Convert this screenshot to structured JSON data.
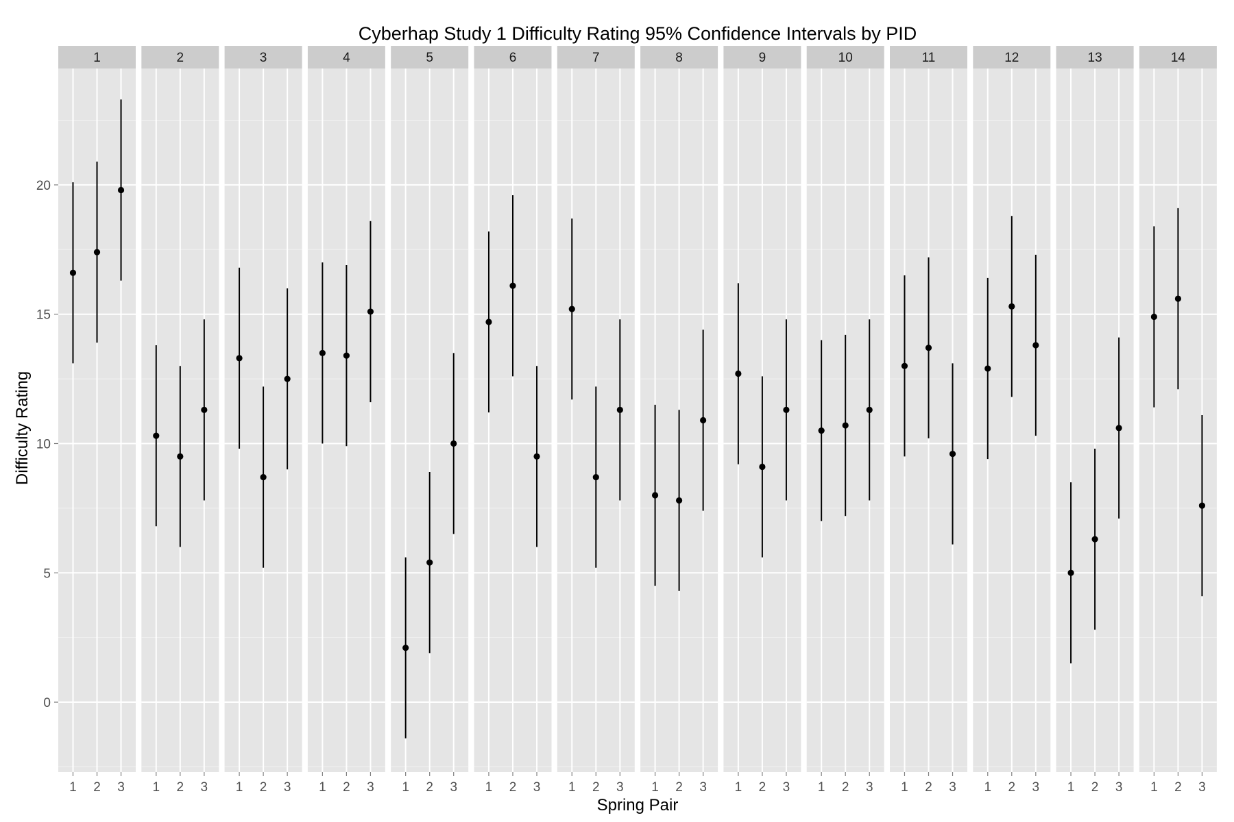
{
  "chart_data": {
    "type": "errorbar",
    "title": "Cyberhap Study 1 Difficulty Rating 95% Confidence Intervals by PID",
    "xlabel": "Spring Pair",
    "ylabel": "Difficulty Rating",
    "ylim": [
      -2.7,
      24.5
    ],
    "yticks": [
      0,
      5,
      10,
      15,
      20
    ],
    "ytick_labels": [
      "0",
      "5",
      "10",
      "15",
      "20"
    ],
    "categories": [
      "1",
      "2",
      "3"
    ],
    "grid": true,
    "facet_by": "PID",
    "panels": [
      {
        "label": "1",
        "mean": [
          16.6,
          17.4,
          19.8
        ],
        "lower": [
          13.1,
          13.9,
          16.3
        ],
        "upper": [
          20.1,
          20.9,
          23.3
        ]
      },
      {
        "label": "2",
        "mean": [
          10.3,
          9.5,
          11.3
        ],
        "lower": [
          6.8,
          6.0,
          7.8
        ],
        "upper": [
          13.8,
          13.0,
          14.8
        ]
      },
      {
        "label": "3",
        "mean": [
          13.3,
          8.7,
          12.5
        ],
        "lower": [
          9.8,
          5.2,
          9.0
        ],
        "upper": [
          16.8,
          12.2,
          16.0
        ]
      },
      {
        "label": "4",
        "mean": [
          13.5,
          13.4,
          15.1
        ],
        "lower": [
          10.0,
          9.9,
          11.6
        ],
        "upper": [
          17.0,
          16.9,
          18.6
        ]
      },
      {
        "label": "5",
        "mean": [
          2.1,
          5.4,
          10.0
        ],
        "lower": [
          -1.4,
          1.9,
          6.5
        ],
        "upper": [
          5.6,
          8.9,
          13.5
        ]
      },
      {
        "label": "6",
        "mean": [
          14.7,
          16.1,
          9.5
        ],
        "lower": [
          11.2,
          12.6,
          6.0
        ],
        "upper": [
          18.2,
          19.6,
          13.0
        ]
      },
      {
        "label": "7",
        "mean": [
          15.2,
          8.7,
          11.3
        ],
        "lower": [
          11.7,
          5.2,
          7.8
        ],
        "upper": [
          18.7,
          12.2,
          14.8
        ]
      },
      {
        "label": "8",
        "mean": [
          8.0,
          7.8,
          10.9
        ],
        "lower": [
          4.5,
          4.3,
          7.4
        ],
        "upper": [
          11.5,
          11.3,
          14.4
        ]
      },
      {
        "label": "9",
        "mean": [
          12.7,
          9.1,
          11.3
        ],
        "lower": [
          9.2,
          5.6,
          7.8
        ],
        "upper": [
          16.2,
          12.6,
          14.8
        ]
      },
      {
        "label": "10",
        "mean": [
          10.5,
          10.7,
          11.3
        ],
        "lower": [
          7.0,
          7.2,
          7.8
        ],
        "upper": [
          14.0,
          14.2,
          14.8
        ]
      },
      {
        "label": "11",
        "mean": [
          13.0,
          13.7,
          9.6
        ],
        "lower": [
          9.5,
          10.2,
          6.1
        ],
        "upper": [
          16.5,
          17.2,
          13.1
        ]
      },
      {
        "label": "12",
        "mean": [
          12.9,
          15.3,
          13.8
        ],
        "lower": [
          9.4,
          11.8,
          10.3
        ],
        "upper": [
          16.4,
          18.8,
          17.3
        ]
      },
      {
        "label": "13",
        "mean": [
          5.0,
          6.3,
          10.6
        ],
        "lower": [
          1.5,
          2.8,
          7.1
        ],
        "upper": [
          8.5,
          9.8,
          14.1
        ]
      },
      {
        "label": "14",
        "mean": [
          14.9,
          15.6,
          7.6
        ],
        "lower": [
          11.4,
          12.1,
          4.1
        ],
        "upper": [
          18.4,
          19.1,
          11.1
        ]
      }
    ]
  }
}
